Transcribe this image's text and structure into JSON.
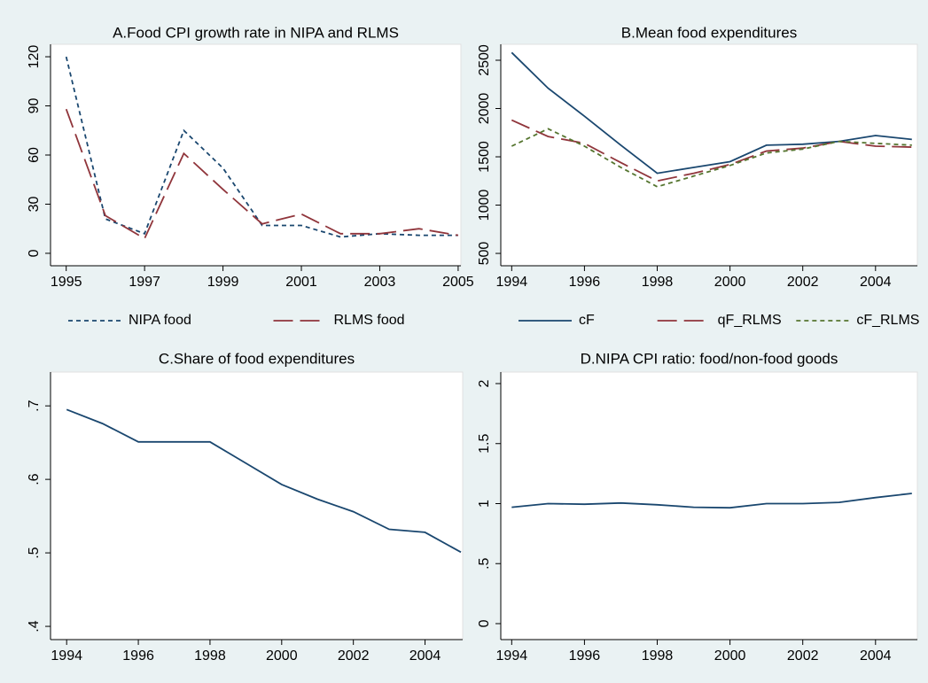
{
  "chart_data": [
    {
      "type": "line",
      "title": "A.Food CPI growth rate in NIPA and RLMS",
      "x": [
        1995,
        1996,
        1997,
        1998,
        1999,
        2000,
        2001,
        2002,
        2003,
        2004,
        2005
      ],
      "series": [
        {
          "name": "NIPA food",
          "color": "#1a476f",
          "dash": "short",
          "values": [
            120,
            21,
            12,
            75,
            52,
            17,
            17,
            10,
            12,
            11,
            11
          ]
        },
        {
          "name": "RLMS food",
          "color": "#90353b",
          "dash": "long",
          "values": [
            88,
            23,
            9,
            61,
            39,
            18,
            24,
            12,
            12,
            15,
            11
          ]
        }
      ],
      "xlim": [
        1994.6,
        2005.07
      ],
      "xticks": [
        1995,
        1997,
        1999,
        2001,
        2003,
        2005
      ],
      "ylim": [
        -7.6,
        127.6
      ],
      "yticks": [
        0,
        30,
        60,
        90,
        120
      ],
      "legend": "bottom"
    },
    {
      "type": "line",
      "title": "B.Mean food expenditures",
      "x": [
        1994,
        1995,
        1996,
        1997,
        1998,
        1999,
        2000,
        2001,
        2002,
        2003,
        2004,
        2005
      ],
      "series": [
        {
          "name": "cF",
          "color": "#1a476f",
          "dash": "solid",
          "values": [
            2580,
            2210,
            1920,
            1620,
            1330,
            1390,
            1450,
            1620,
            1630,
            1660,
            1720,
            1680
          ]
        },
        {
          "name": "qF_RLMS",
          "color": "#90353b",
          "dash": "long",
          "values": [
            1880,
            1710,
            1640,
            1440,
            1250,
            1330,
            1420,
            1560,
            1590,
            1660,
            1610,
            1600
          ]
        },
        {
          "name": "cF_RLMS",
          "color": "#55752f",
          "dash": "short",
          "values": [
            1610,
            1790,
            1610,
            1390,
            1190,
            1300,
            1410,
            1540,
            1580,
            1660,
            1640,
            1620
          ]
        }
      ],
      "xlim": [
        1993.7,
        2005.15
      ],
      "xticks": [
        1994,
        1996,
        1998,
        2000,
        2002,
        2004
      ],
      "ylim": [
        372,
        2665
      ],
      "yticks": [
        500,
        1000,
        1500,
        2000,
        2500
      ],
      "legend": "bottom"
    },
    {
      "type": "line",
      "title": "C.Share of food expenditures",
      "x": [
        1994,
        1995,
        1996,
        1997,
        1998,
        1999,
        2000,
        2001,
        2002,
        2003,
        2004,
        2005
      ],
      "values": [
        0.695,
        0.676,
        0.651,
        0.651,
        0.651,
        0.622,
        0.593,
        0.573,
        0.556,
        0.532,
        0.528,
        0.501
      ],
      "color": "#1a476f",
      "xlim": [
        1993.55,
        2005.05
      ],
      "xticks": [
        1994,
        1996,
        1998,
        2000,
        2002,
        2004
      ],
      "ylim": [
        0.382,
        0.746
      ],
      "yticks": [
        {
          "value": 0.4,
          "label": ".4"
        },
        {
          "value": 0.5,
          "label": ".5"
        },
        {
          "value": 0.6,
          "label": ".6"
        },
        {
          "value": 0.7,
          "label": ".7"
        }
      ]
    },
    {
      "type": "line",
      "title": "D.NIPA CPI ratio: food/non-food goods",
      "x": [
        1994,
        1995,
        1996,
        1997,
        1998,
        1999,
        2000,
        2001,
        2002,
        2003,
        2004,
        2005
      ],
      "values": [
        0.97,
        1.0,
        0.995,
        1.005,
        0.99,
        0.97,
        0.965,
        1.0,
        1.0,
        1.01,
        1.05,
        1.085
      ],
      "color": "#1a476f",
      "xlim": [
        1993.7,
        2005.15
      ],
      "xticks": [
        1994,
        1996,
        1998,
        2000,
        2002,
        2004
      ],
      "ylim": [
        -0.133,
        2.096
      ],
      "yticks": [
        0,
        {
          "value": 0.5,
          "label": ".5"
        },
        1,
        1.5,
        2
      ]
    }
  ]
}
